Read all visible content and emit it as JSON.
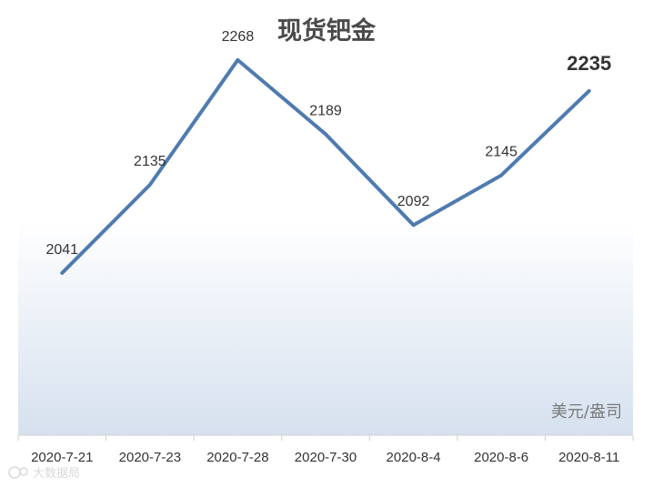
{
  "chart_data": {
    "type": "line",
    "title": "现货钯金",
    "unit_label": "美元/盎司",
    "categories": [
      "2020-7-21",
      "2020-7-23",
      "2020-7-28",
      "2020-7-30",
      "2020-8-4",
      "2020-8-6",
      "2020-8-11"
    ],
    "series": [
      {
        "values": [
          2041,
          2135,
          2268,
          2189,
          2092,
          2145,
          2235
        ]
      }
    ],
    "ylim": [
      1868,
      2332
    ],
    "highlight_last": true,
    "grid": false,
    "colors": {
      "line": "#4f7bb0",
      "gradient_bottom": "#d6e1ef"
    }
  },
  "watermark": {
    "text": "大数据局",
    "icon": "logo-icon"
  }
}
